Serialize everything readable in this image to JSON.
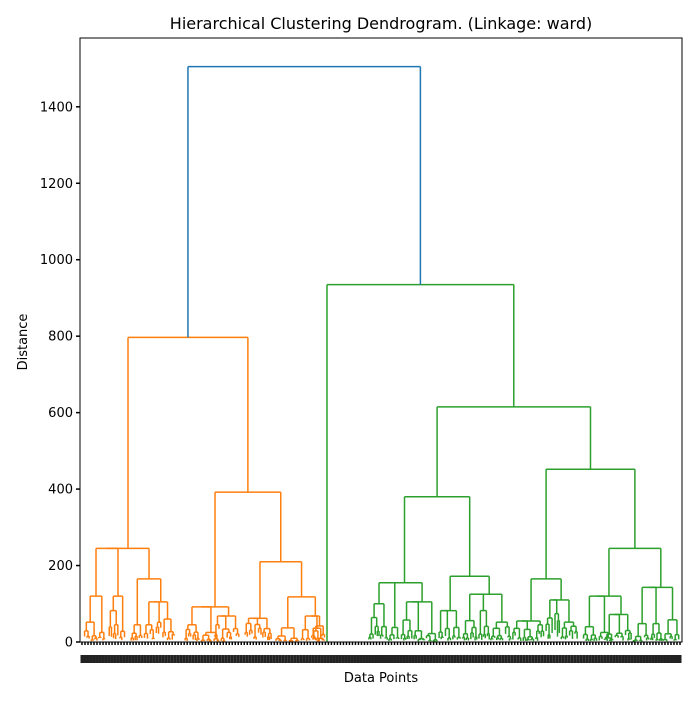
{
  "chart_data": {
    "type": "dendrogram",
    "title": "Hierarchical Clustering Dendrogram. (Linkage: ward)",
    "xlabel": "Data Points",
    "ylabel": "Distance",
    "ylim": [
      0,
      1580
    ],
    "yticks": [
      0,
      200,
      400,
      600,
      800,
      1000,
      1200,
      1400
    ],
    "grid": false,
    "leaf_count": 200,
    "leaf_labels_legible": false,
    "colors": {
      "above_threshold": "#1f77b4",
      "cluster_1": "#ff7f0e",
      "cluster_2": "#2ca02c"
    },
    "root_merge": {
      "distance": 1505,
      "children": [
        "cluster_1",
        "cluster_2"
      ]
    },
    "cluster_1_merges": [
      {
        "distance": 797,
        "note": "top of orange cluster"
      },
      {
        "distance": 245
      },
      {
        "distance": 392
      },
      {
        "distance": 210
      },
      {
        "distance": 165
      },
      {
        "distance": 120
      },
      {
        "distance": 118
      },
      {
        "distance": 105
      },
      {
        "distance": 92
      },
      {
        "distance": 80
      }
    ],
    "cluster_2_merges": [
      {
        "distance": 935,
        "note": "top of green cluster"
      },
      {
        "distance": 615
      },
      {
        "distance": 452
      },
      {
        "distance": 380
      },
      {
        "distance": 245
      },
      {
        "distance": 172
      },
      {
        "distance": 165
      },
      {
        "distance": 155
      },
      {
        "distance": 143
      },
      {
        "distance": 125
      },
      {
        "distance": 120
      },
      {
        "distance": 108
      },
      {
        "distance": 105
      },
      {
        "distance": 100
      }
    ]
  }
}
